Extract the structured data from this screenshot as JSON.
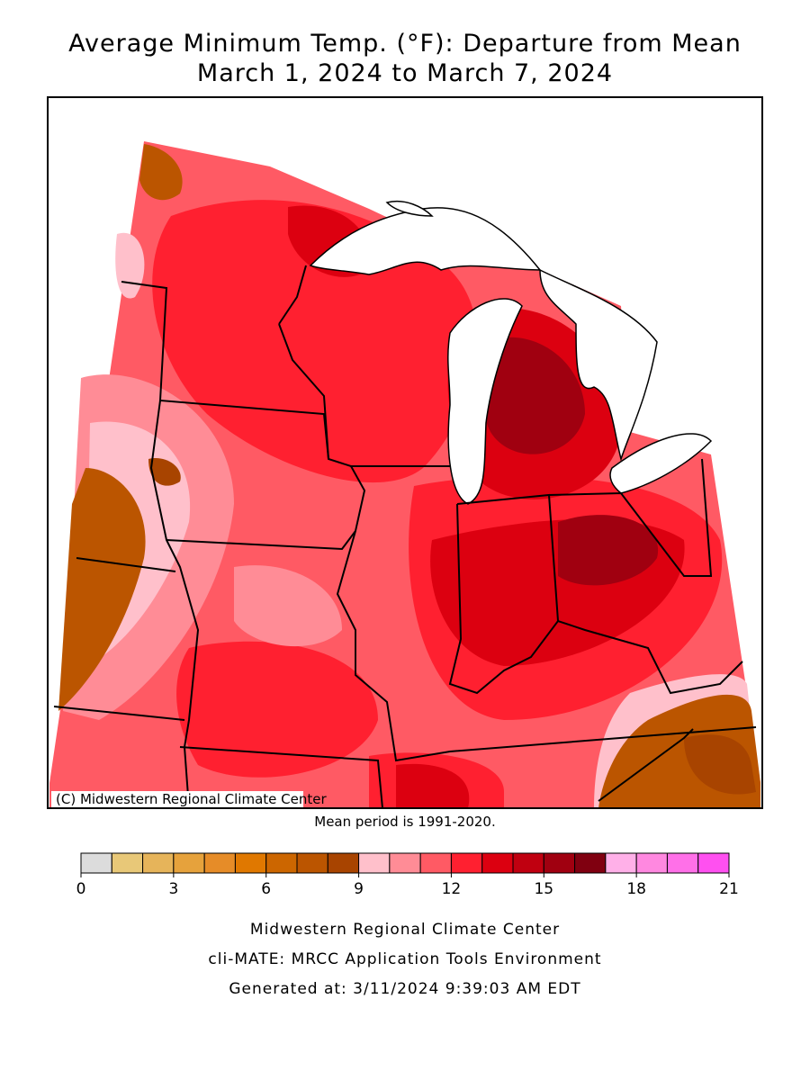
{
  "title": [
    "Average Minimum Temp. (°F): Departure from Mean",
    "March 1, 2024 to March 7, 2024"
  ],
  "credit": "(C) Midwestern Regional Climate Center",
  "note": "Mean period is 1991-2020.",
  "legend": {
    "bins": [
      0,
      1,
      2,
      3,
      4,
      5,
      6,
      7,
      8,
      9,
      10,
      11,
      12,
      13,
      14,
      15,
      16,
      17,
      18,
      19,
      20,
      21
    ],
    "colors": [
      "#dcdcdc",
      "#e8c878",
      "#e6b45a",
      "#e6a23c",
      "#e68c28",
      "#e07800",
      "#cc6600",
      "#bb5500",
      "#a84400",
      "#ffc0cb",
      "#ff8c96",
      "#ff5a64",
      "#ff2030",
      "#dc0010",
      "#c00010",
      "#a00010",
      "#800010",
      "#ffb0e8",
      "#ff88e0",
      "#ff70e8",
      "#ff50f0"
    ],
    "ticks": [
      0,
      3,
      6,
      9,
      12,
      15,
      18,
      21
    ]
  },
  "footer": [
    "Midwestern Regional Climate Center",
    "cli-MATE: MRCC Application Tools Environment",
    "Generated at: 3/11/2024 9:39:03 AM EDT"
  ]
}
